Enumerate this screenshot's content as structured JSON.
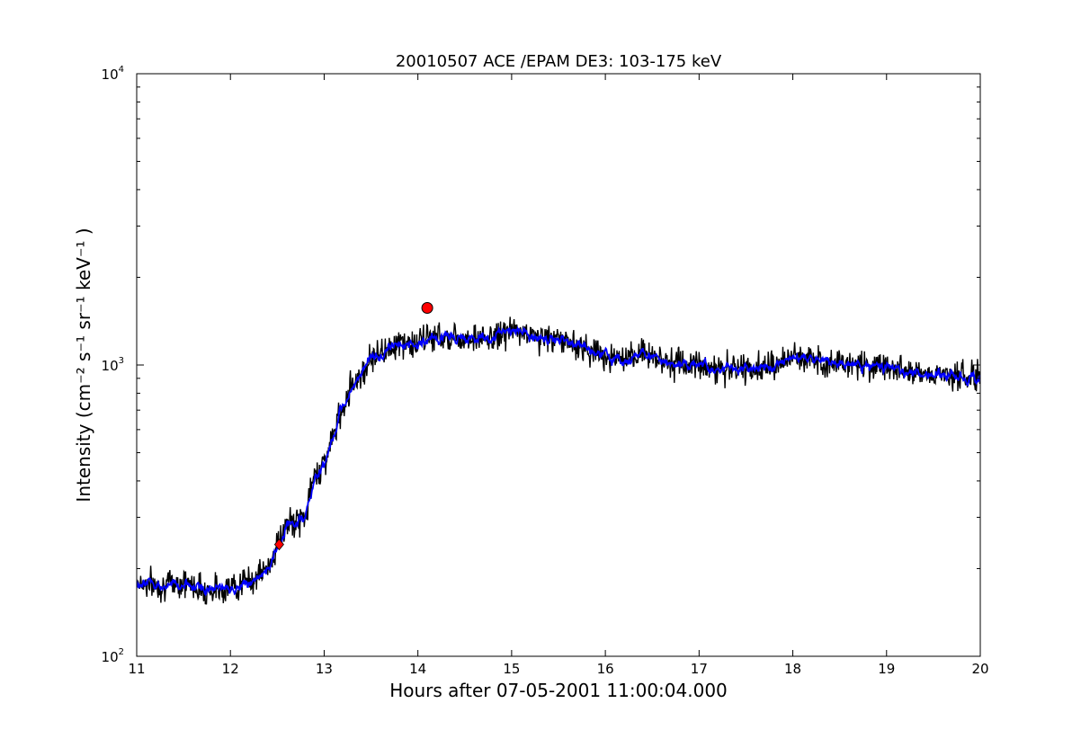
{
  "chart_data": {
    "type": "line",
    "title": "20010507 ACE /EPAM DE3: 103-175 keV",
    "xlabel": "Hours after 07-05-2001 11:00:04.000",
    "ylabel": "Intensity (cm⁻² s⁻¹ sr⁻¹ keV⁻¹ )",
    "xlim": [
      11,
      20
    ],
    "ylim": [
      100,
      10000
    ],
    "yscale": "log",
    "grid": false,
    "legend": "none",
    "x_ticks": [
      "11",
      "12",
      "13",
      "14",
      "15",
      "16",
      "17",
      "18",
      "19",
      "20"
    ],
    "y_ticks": [
      {
        "base": "10",
        "exp": "2",
        "value": 100
      },
      {
        "base": "10",
        "exp": "3",
        "value": 1000
      },
      {
        "base": "10",
        "exp": "4",
        "value": 10000
      }
    ],
    "series": [
      {
        "color": "#000000",
        "style": "raw-noisy",
        "x": [
          11.0,
          11.25,
          11.5,
          11.75,
          12.0,
          12.25,
          12.4,
          12.5,
          12.6,
          12.7,
          12.8,
          12.9,
          13.0,
          13.1,
          13.2,
          13.3,
          13.4,
          13.5,
          13.75,
          14.0,
          14.1,
          14.25,
          14.5,
          14.75,
          15.0,
          15.25,
          15.5,
          15.75,
          16.0,
          16.25,
          16.4,
          16.6,
          16.8,
          17.0,
          17.25,
          17.5,
          17.75,
          18.0,
          18.25,
          18.5,
          18.75,
          19.0,
          19.25,
          19.5,
          19.75,
          20.0
        ],
        "y": [
          180,
          175,
          180,
          168,
          172,
          185,
          200,
          240,
          280,
          290,
          300,
          420,
          460,
          570,
          720,
          870,
          930,
          1060,
          1180,
          1180,
          1250,
          1250,
          1250,
          1220,
          1320,
          1250,
          1230,
          1150,
          1080,
          1020,
          1120,
          1050,
          1000,
          1010,
          960,
          970,
          980,
          1060,
          1050,
          1010,
          1000,
          990,
          960,
          930,
          920,
          900
        ]
      },
      {
        "color": "#0000ff",
        "style": "smoothed",
        "x": [
          11.0,
          11.25,
          11.5,
          11.75,
          12.0,
          12.25,
          12.4,
          12.5,
          12.6,
          12.7,
          12.8,
          12.9,
          13.0,
          13.1,
          13.2,
          13.3,
          13.4,
          13.5,
          13.75,
          14.0,
          14.1,
          14.25,
          14.5,
          14.75,
          15.0,
          15.25,
          15.5,
          15.75,
          16.0,
          16.25,
          16.4,
          16.6,
          16.8,
          17.0,
          17.25,
          17.5,
          17.75,
          18.0,
          18.25,
          18.5,
          18.75,
          19.0,
          19.25,
          19.5,
          19.75,
          20.0
        ],
        "y": [
          178,
          176,
          178,
          170,
          172,
          182,
          198,
          235,
          275,
          285,
          300,
          410,
          455,
          565,
          715,
          860,
          925,
          1050,
          1170,
          1175,
          1240,
          1245,
          1245,
          1215,
          1310,
          1245,
          1225,
          1145,
          1080,
          1020,
          1110,
          1045,
          1000,
          1005,
          960,
          968,
          978,
          1055,
          1045,
          1008,
          998,
          988,
          958,
          930,
          918,
          900
        ]
      }
    ],
    "markers": [
      {
        "x": 12.52,
        "y": 242,
        "color": "#ff0000",
        "shape": "diamond"
      },
      {
        "x": 14.1,
        "y": 1570,
        "color": "#ff0000",
        "shape": "circle"
      }
    ]
  }
}
